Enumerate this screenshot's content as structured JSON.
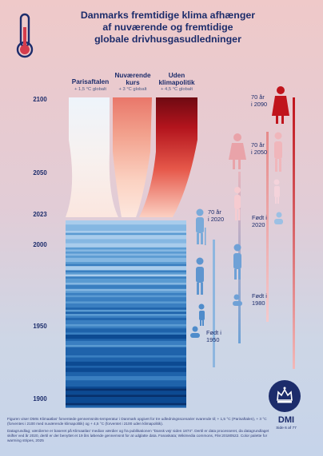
{
  "title": {
    "line1": "Danmarks fremtidige klima afhænger",
    "line2": "af nuværende og fremtidige",
    "line3": "globale drivhusgasudledninger"
  },
  "scenarios": [
    {
      "name_lines": [
        "Parisaftalen"
      ],
      "sub": "+ 1,5 °C globalt"
    },
    {
      "name_lines": [
        "Nuværende",
        "kurs"
      ],
      "sub": "+ 3 °C globalt"
    },
    {
      "name_lines": [
        "Uden",
        "klimapolitik"
      ],
      "sub": "+ 4,5 °C globalt"
    }
  ],
  "years": [
    "2100",
    "2050",
    "2023",
    "2000",
    "1950",
    "1900"
  ],
  "generations": [
    {
      "lines": [
        "70 år",
        "i 2090"
      ]
    },
    {
      "lines": [
        "70 år",
        "i 2050"
      ]
    },
    {
      "lines": [
        "Født i",
        "2020"
      ]
    },
    {
      "lines": [
        "70 år",
        "i 2020"
      ]
    },
    {
      "lines": [
        "Født i",
        "1980"
      ]
    },
    {
      "lines": [
        "Født i",
        "1950"
      ]
    }
  ],
  "footer": {
    "p1": "Figuren viser DMIs Klimaatlas' forventede gennemsnits-temperatur i Danmark opgivet for tre udledningsscenarier svarende til; + 1,5 °C (Parisaftalen), + 3 °C (forventes i 2100 med nuværende klimapolitik) og + 4,5 °C (forventet i 2100 uden klimapolitik).",
    "p2": "Datagrundlag; værdierne er baseret på Klimaatlas' median værdier og fra publikationen \"Dansk vejr siden 1874\". Dertil er data processeret, da datagrundlaget skifter ved år 2020, dertil er der benyttet et 19 års løbende gennemsnit for at udglatte data. Fanaskata; Wikimedia commons, File:20180522. Color palette for warming stripes, 2025"
  },
  "brand": {
    "name": "DMI",
    "page": "Side 6 af 77"
  },
  "colors": {
    "navy": "#1c2c6b",
    "red": "#c0141c",
    "blue": "#2c6cb4"
  }
}
